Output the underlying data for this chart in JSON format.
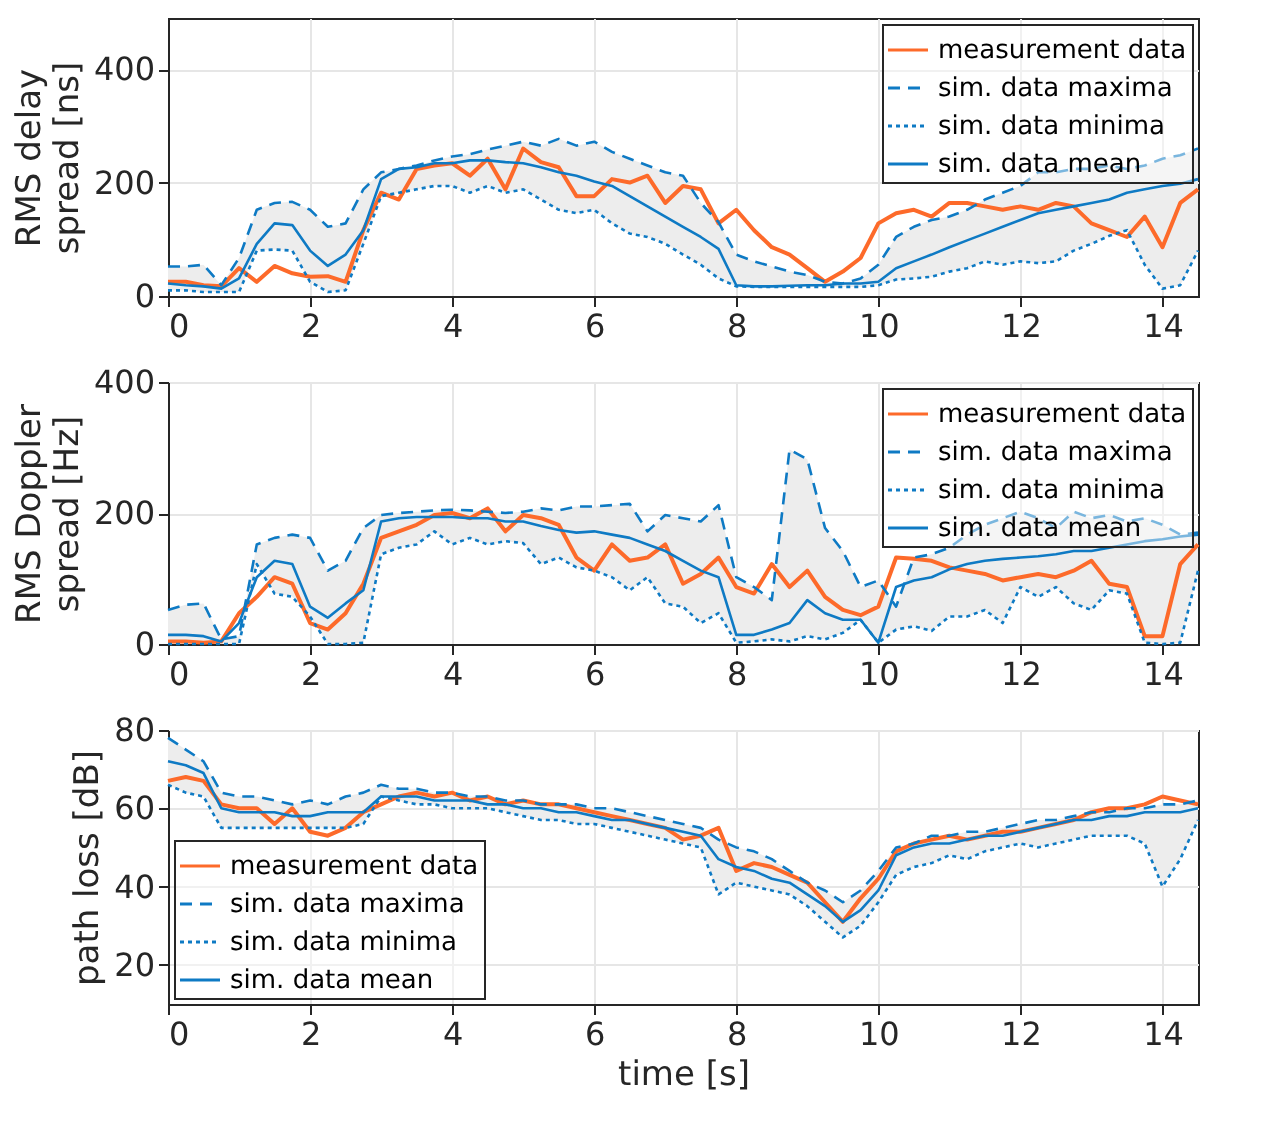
{
  "chart_data": [
    {
      "type": "line",
      "ylabel": "RMS delay\nspread [ns]",
      "xlim": [
        0,
        14.5
      ],
      "xticks": [
        0,
        2,
        4,
        6,
        8,
        10,
        12,
        14
      ],
      "ylim": [
        0,
        490
      ],
      "yticks": [
        0,
        200,
        400
      ],
      "grid": true,
      "legend": "top right",
      "x": [
        0,
        0.25,
        0.5,
        0.75,
        1,
        1.25,
        1.5,
        1.75,
        2,
        2.25,
        2.5,
        2.75,
        3,
        3.25,
        3.5,
        3.75,
        4,
        4.25,
        4.5,
        4.75,
        5,
        5.25,
        5.5,
        5.75,
        6,
        6.25,
        6.5,
        6.75,
        7,
        7.25,
        7.5,
        7.75,
        8,
        8.25,
        8.5,
        8.75,
        9,
        9.25,
        9.5,
        9.75,
        10,
        10.25,
        10.5,
        10.75,
        11,
        11.25,
        11.5,
        11.75,
        12,
        12.25,
        12.5,
        12.75,
        13,
        13.25,
        13.5,
        13.75,
        14,
        14.25,
        14.5
      ],
      "series": [
        {
          "name": "measurement data",
          "color": "#fd6a2a",
          "line_style": "solid",
          "values": [
            25,
            25,
            19,
            17,
            49,
            25,
            53,
            40,
            34,
            35,
            25,
            116,
            182,
            170,
            224,
            230,
            234,
            212,
            242,
            188,
            260,
            236,
            227,
            176,
            176,
            206,
            200,
            212,
            164,
            194,
            188,
            128,
            152,
            116,
            86,
            73,
            49,
            25,
            43,
            67,
            128,
            146,
            152,
            140,
            164,
            164,
            158,
            152,
            158,
            152,
            164,
            158,
            128,
            116,
            104,
            140,
            86,
            164,
            188
          ]
        },
        {
          "name": "sim. data maxima",
          "color": "#0e7ac4",
          "line_style": "dashed",
          "values": [
            52,
            52,
            55,
            19,
            67,
            152,
            164,
            166,
            152,
            122,
            128,
            188,
            218,
            224,
            230,
            239,
            246,
            250,
            258,
            265,
            272,
            265,
            277,
            265,
            272,
            254,
            242,
            230,
            218,
            212,
            164,
            130,
            73,
            61,
            52,
            43,
            37,
            25,
            22,
            31,
            55,
            104,
            122,
            134,
            140,
            152,
            170,
            182,
            194,
            218,
            218,
            224,
            224,
            230,
            224,
            230,
            242,
            248,
            260
          ]
        },
        {
          "name": "sim. data minima",
          "color": "#0e7ac4",
          "line_style": "dotted",
          "values": [
            10,
            10,
            7,
            7,
            7,
            80,
            82,
            80,
            25,
            7,
            10,
            92,
            176,
            182,
            188,
            194,
            194,
            182,
            194,
            182,
            188,
            170,
            152,
            146,
            152,
            128,
            110,
            104,
            92,
            73,
            55,
            31,
            17,
            16,
            16,
            16,
            16,
            16,
            16,
            16,
            19,
            29,
            31,
            34,
            43,
            49,
            61,
            55,
            61,
            58,
            61,
            80,
            92,
            106,
            116,
            55,
            13,
            19,
            80
          ]
        },
        {
          "name": "sim. data mean",
          "color": "#0e7ac4",
          "line_style": "solid",
          "values": [
            22,
            19,
            17,
            13,
            31,
            92,
            128,
            125,
            80,
            53,
            73,
            116,
            206,
            224,
            227,
            234,
            234,
            239,
            239,
            236,
            234,
            227,
            218,
            212,
            202,
            194,
            176,
            158,
            140,
            122,
            104,
            83,
            19,
            17,
            17,
            18,
            19,
            19,
            22,
            22,
            25,
            49,
            61,
            73,
            86,
            98,
            110,
            122,
            134,
            146,
            152,
            158,
            164,
            170,
            182,
            188,
            194,
            198,
            206
          ],
          "lower": [
            10,
            10,
            7,
            7,
            7,
            80,
            82,
            80,
            25,
            7,
            10,
            92,
            176,
            182,
            188,
            194,
            194,
            182,
            194,
            182,
            188,
            170,
            152,
            146,
            152,
            128,
            110,
            104,
            92,
            73,
            55,
            31,
            17,
            16,
            16,
            16,
            16,
            16,
            16,
            16,
            19,
            29,
            31,
            34,
            43,
            49,
            61,
            55,
            61,
            58,
            61,
            80,
            92,
            106,
            116,
            55,
            13,
            19,
            80
          ],
          "upper": [
            52,
            52,
            55,
            19,
            67,
            152,
            164,
            166,
            152,
            122,
            128,
            188,
            218,
            224,
            230,
            239,
            246,
            250,
            258,
            265,
            272,
            265,
            277,
            265,
            272,
            254,
            242,
            230,
            218,
            212,
            164,
            130,
            73,
            61,
            52,
            43,
            37,
            25,
            22,
            31,
            55,
            104,
            122,
            134,
            140,
            152,
            170,
            182,
            194,
            218,
            218,
            224,
            224,
            230,
            224,
            230,
            242,
            248,
            260
          ]
        }
      ]
    },
    {
      "type": "line",
      "ylabel": "RMS Doppler\nspread [Hz]",
      "xlim": [
        0,
        14.5
      ],
      "xticks": [
        0,
        2,
        4,
        6,
        8,
        10,
        12,
        14
      ],
      "ylim": [
        0,
        400
      ],
      "yticks": [
        0,
        200,
        400
      ],
      "grid": true,
      "legend": "top right",
      "x": [
        0,
        0.25,
        0.5,
        0.75,
        1,
        1.25,
        1.5,
        1.75,
        2,
        2.25,
        2.5,
        2.75,
        3,
        3.25,
        3.5,
        3.75,
        4,
        4.25,
        4.5,
        4.75,
        5,
        5.25,
        5.5,
        5.75,
        6,
        6.25,
        6.5,
        6.75,
        7,
        7.25,
        7.5,
        7.75,
        8,
        8.25,
        8.5,
        8.75,
        9,
        9.25,
        9.5,
        9.75,
        10,
        10.25,
        10.5,
        10.75,
        11,
        11.25,
        11.5,
        11.75,
        12,
        12.25,
        12.5,
        12.75,
        13,
        13.25,
        13.5,
        13.75,
        14,
        14.25,
        14.5
      ],
      "series": [
        {
          "name": "measurement data",
          "color": "#fd6a2a",
          "line_style": "solid",
          "values": [
            4,
            4,
            2,
            4,
            47,
            72,
            102,
            92,
            32,
            22,
            47,
            92,
            162,
            172,
            182,
            197,
            200,
            192,
            207,
            172,
            197,
            192,
            182,
            132,
            112,
            152,
            127,
            132,
            152,
            92,
            107,
            132,
            87,
            77,
            122,
            87,
            112,
            72,
            52,
            44,
            57,
            132,
            130,
            127,
            117,
            112,
            107,
            97,
            102,
            107,
            102,
            112,
            127,
            92,
            87,
            12,
            12,
            122,
            152
          ]
        },
        {
          "name": "sim. data maxima",
          "color": "#0e7ac4",
          "line_style": "dashed",
          "values": [
            52,
            60,
            62,
            7,
            12,
            152,
            162,
            167,
            162,
            112,
            127,
            177,
            197,
            200,
            202,
            204,
            205,
            204,
            202,
            200,
            202,
            207,
            204,
            210,
            210,
            212,
            214,
            172,
            197,
            192,
            187,
            212,
            102,
            87,
            67,
            297,
            282,
            177,
            142,
            87,
            97,
            57,
            132,
            137,
            147,
            167,
            182,
            192,
            202,
            192,
            177,
            202,
            192,
            197,
            187,
            192,
            182,
            167,
            170
          ]
        },
        {
          "name": "sim. data minima",
          "color": "#0e7ac4",
          "line_style": "dotted",
          "values": [
            0,
            0,
            0,
            0,
            0,
            122,
            77,
            72,
            42,
            0,
            0,
            2,
            137,
            147,
            152,
            172,
            152,
            162,
            152,
            157,
            154,
            122,
            132,
            117,
            112,
            102,
            82,
            102,
            62,
            57,
            32,
            47,
            2,
            4,
            7,
            4,
            12,
            7,
            17,
            37,
            2,
            22,
            27,
            20,
            42,
            42,
            52,
            32,
            87,
            72,
            87,
            62,
            52,
            82,
            77,
            2,
            0,
            2,
            112
          ]
        },
        {
          "name": "sim. data mean",
          "color": "#0e7ac4",
          "line_style": "solid",
          "values": [
            14,
            14,
            12,
            4,
            32,
            102,
            127,
            122,
            57,
            40,
            62,
            82,
            187,
            192,
            194,
            194,
            194,
            192,
            192,
            187,
            187,
            180,
            174,
            170,
            172,
            167,
            162,
            152,
            142,
            127,
            112,
            102,
            14,
            14,
            22,
            32,
            67,
            47,
            37,
            37,
            2,
            87,
            97,
            102,
            114,
            122,
            127,
            130,
            132,
            134,
            137,
            142,
            142,
            147,
            152,
            157,
            160,
            164,
            167
          ],
          "lower": [
            0,
            0,
            0,
            0,
            0,
            122,
            77,
            72,
            42,
            0,
            0,
            2,
            137,
            147,
            152,
            172,
            152,
            162,
            152,
            157,
            154,
            122,
            132,
            117,
            112,
            102,
            82,
            102,
            62,
            57,
            32,
            47,
            2,
            4,
            7,
            4,
            12,
            7,
            17,
            37,
            2,
            22,
            27,
            20,
            42,
            42,
            52,
            32,
            87,
            72,
            87,
            62,
            52,
            82,
            77,
            2,
            0,
            2,
            112
          ],
          "upper": [
            52,
            60,
            62,
            7,
            12,
            152,
            162,
            167,
            162,
            112,
            127,
            177,
            197,
            200,
            202,
            204,
            205,
            204,
            202,
            200,
            202,
            207,
            204,
            210,
            210,
            212,
            214,
            172,
            197,
            192,
            187,
            212,
            102,
            87,
            67,
            297,
            282,
            177,
            142,
            87,
            97,
            57,
            132,
            137,
            147,
            167,
            182,
            192,
            202,
            192,
            177,
            202,
            192,
            197,
            187,
            192,
            182,
            167,
            170
          ]
        }
      ]
    },
    {
      "type": "line",
      "ylabel": "path loss [dB]",
      "xlabel": "time [s]",
      "xlim": [
        0,
        14.5
      ],
      "xticks": [
        0,
        2,
        4,
        6,
        8,
        10,
        12,
        14
      ],
      "ylim": [
        10,
        80
      ],
      "yticks": [
        20,
        40,
        60,
        80
      ],
      "grid": true,
      "legend": "bottom left",
      "x": [
        0,
        0.25,
        0.5,
        0.75,
        1,
        1.25,
        1.5,
        1.75,
        2,
        2.25,
        2.5,
        2.75,
        3,
        3.25,
        3.5,
        3.75,
        4,
        4.25,
        4.5,
        4.75,
        5,
        5.25,
        5.5,
        5.75,
        6,
        6.25,
        6.5,
        6.75,
        7,
        7.25,
        7.5,
        7.75,
        8,
        8.25,
        8.5,
        8.75,
        9,
        9.25,
        9.5,
        9.75,
        10,
        10.25,
        10.5,
        10.75,
        11,
        11.25,
        11.5,
        11.75,
        12,
        12.25,
        12.5,
        12.75,
        13,
        13.25,
        13.5,
        13.75,
        14,
        14.25,
        14.5
      ],
      "series": [
        {
          "name": "measurement data",
          "color": "#fd6a2a",
          "line_style": "solid",
          "values": [
            67,
            68,
            67,
            61,
            60,
            60,
            56,
            60,
            54,
            53,
            55,
            59,
            61,
            63,
            64,
            63,
            64,
            62,
            63,
            61,
            62,
            61,
            61,
            60,
            59,
            58,
            57,
            56,
            55,
            52,
            53,
            55,
            44,
            46,
            45,
            43,
            41,
            36,
            31,
            37,
            42,
            49,
            51,
            52,
            53,
            52,
            53,
            54,
            54,
            55,
            56,
            57,
            59,
            60,
            60,
            61,
            63,
            62,
            61
          ]
        },
        {
          "name": "sim. data maxima",
          "color": "#0e7ac4",
          "line_style": "dashed",
          "values": [
            78,
            75,
            72,
            64,
            63,
            63,
            62,
            61,
            62,
            61,
            63,
            64,
            66,
            65,
            65,
            64,
            64,
            63,
            63,
            62,
            62,
            61,
            61,
            61,
            60,
            60,
            59,
            58,
            57,
            56,
            55,
            52,
            50,
            49,
            47,
            44,
            41,
            39,
            36,
            39,
            44,
            50,
            51,
            53,
            53,
            54,
            54,
            55,
            56,
            57,
            57,
            58,
            59,
            59,
            60,
            60,
            61,
            61,
            62
          ]
        },
        {
          "name": "sim. data minima",
          "color": "#0e7ac4",
          "line_style": "dotted",
          "values": [
            66,
            64,
            63,
            55,
            55,
            55,
            55,
            55,
            55,
            55,
            55,
            56,
            63,
            62,
            61,
            61,
            60,
            60,
            60,
            59,
            58,
            57,
            57,
            56,
            56,
            55,
            54,
            53,
            52,
            51,
            50,
            38,
            41,
            40,
            39,
            38,
            35,
            31,
            27,
            30,
            36,
            43,
            45,
            46,
            48,
            47,
            49,
            50,
            51,
            50,
            51,
            52,
            53,
            53,
            53,
            51,
            40,
            47,
            57
          ]
        },
        {
          "name": "sim. data mean",
          "color": "#0e7ac4",
          "line_style": "solid",
          "values": [
            72,
            71,
            69,
            60,
            59,
            59,
            59,
            58,
            58,
            59,
            59,
            59,
            63,
            63,
            63,
            62,
            62,
            62,
            61,
            61,
            60,
            60,
            59,
            59,
            58,
            57,
            57,
            56,
            55,
            54,
            53,
            47,
            45,
            44,
            42,
            41,
            38,
            35,
            31,
            34,
            39,
            48,
            50,
            51,
            51,
            52,
            53,
            53,
            54,
            55,
            56,
            57,
            57,
            58,
            58,
            59,
            59,
            59,
            60
          ],
          "lower": [
            66,
            64,
            63,
            55,
            55,
            55,
            55,
            55,
            55,
            55,
            55,
            56,
            63,
            62,
            61,
            61,
            60,
            60,
            60,
            59,
            58,
            57,
            57,
            56,
            56,
            55,
            54,
            53,
            52,
            51,
            50,
            38,
            41,
            40,
            39,
            38,
            35,
            31,
            27,
            30,
            36,
            43,
            45,
            46,
            48,
            47,
            49,
            50,
            51,
            50,
            51,
            52,
            53,
            53,
            53,
            51,
            40,
            47,
            57
          ],
          "upper": [
            78,
            75,
            72,
            64,
            63,
            63,
            62,
            61,
            62,
            61,
            63,
            64,
            66,
            65,
            65,
            64,
            64,
            63,
            63,
            62,
            62,
            61,
            61,
            61,
            60,
            60,
            59,
            58,
            57,
            56,
            55,
            52,
            50,
            49,
            47,
            44,
            41,
            39,
            36,
            39,
            44,
            50,
            51,
            53,
            53,
            54,
            54,
            55,
            56,
            57,
            57,
            58,
            59,
            59,
            60,
            60,
            61,
            61,
            62
          ]
        }
      ]
    }
  ]
}
